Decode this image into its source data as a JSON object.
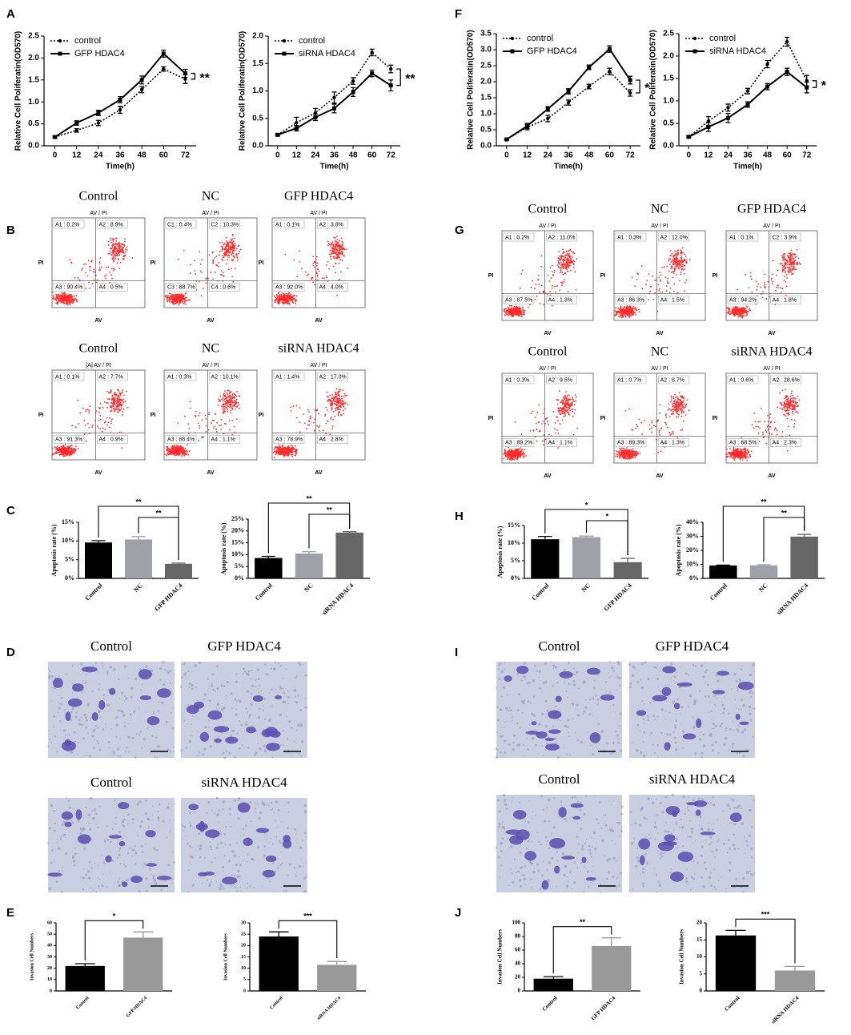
{
  "panel_labels": [
    "A",
    "B",
    "C",
    "D",
    "E",
    "F",
    "G",
    "H",
    "I",
    "J"
  ],
  "chart_data": [
    {
      "type": "line",
      "y_label": "Relative Cell Poliferatin(OD570)",
      "x_label": "Time(h)",
      "x": [
        0,
        12,
        24,
        36,
        48,
        60,
        72
      ],
      "xlim": [
        -6,
        78
      ],
      "xticks": [
        0,
        12,
        24,
        36,
        48,
        60,
        72
      ],
      "ylim": [
        0,
        2.5
      ],
      "yticks": [
        {
          "value": 0,
          "label": "0.0"
        },
        0.5,
        {
          "value": 1,
          "label": "1.0"
        },
        1.5,
        {
          "value": 2,
          "label": "2.0"
        },
        2.5
      ],
      "legend": "upper left",
      "annotation": "**",
      "series": [
        {
          "name": "control",
          "color": "#000000",
          "line_style": "dotted",
          "marker": "circle",
          "values": [
            0.2,
            0.35,
            0.52,
            0.82,
            1.28,
            1.75,
            1.52
          ],
          "errors": [
            0.02,
            0.04,
            0.06,
            0.08,
            0.07,
            0.05,
            0.1
          ]
        },
        {
          "name": "GFP HDAC4",
          "color": "#000000",
          "line_style": "solid",
          "marker": "square",
          "values": [
            0.2,
            0.52,
            0.75,
            1.05,
            1.5,
            2.1,
            1.65
          ],
          "errors": [
            0.02,
            0.05,
            0.06,
            0.07,
            0.09,
            0.08,
            0.09
          ]
        }
      ]
    },
    {
      "type": "line",
      "y_label": "Relative Cell Poliferatin(OD570)",
      "x_label": "Time(h)",
      "x": [
        0,
        12,
        24,
        36,
        48,
        60,
        72
      ],
      "xlim": [
        -6,
        78
      ],
      "xticks": [
        0,
        12,
        24,
        36,
        48,
        60,
        72
      ],
      "ylim": [
        0,
        2.0
      ],
      "yticks": [
        {
          "value": 0,
          "label": "0.0"
        },
        0.5,
        {
          "value": 1,
          "label": "1.0"
        },
        1.5,
        {
          "value": 2,
          "label": "2.0"
        }
      ],
      "legend": "upper left",
      "annotation": "**",
      "series": [
        {
          "name": "control",
          "color": "#000000",
          "line_style": "dotted",
          "marker": "circle",
          "values": [
            0.2,
            0.42,
            0.6,
            0.88,
            1.18,
            1.7,
            1.4
          ],
          "errors": [
            0.02,
            0.1,
            0.08,
            0.1,
            0.06,
            0.06,
            0.07
          ]
        },
        {
          "name": "siRNA HDAC4",
          "color": "#000000",
          "line_style": "solid",
          "marker": "square",
          "values": [
            0.2,
            0.32,
            0.52,
            0.68,
            0.98,
            1.32,
            1.1
          ],
          "errors": [
            0.02,
            0.05,
            0.06,
            0.08,
            0.08,
            0.06,
            0.1
          ]
        }
      ]
    },
    {
      "type": "line",
      "y_label": "Relative Cell Poliferatin(OD570)",
      "x_label": "Time(h)",
      "x": [
        0,
        12,
        24,
        36,
        48,
        60,
        72
      ],
      "xlim": [
        -6,
        78
      ],
      "xticks": [
        0,
        12,
        24,
        36,
        48,
        60,
        72
      ],
      "ylim": [
        0,
        3.5
      ],
      "yticks": [
        {
          "value": 0,
          "label": "0.0"
        },
        0.5,
        {
          "value": 1,
          "label": "1.0"
        },
        1.5,
        {
          "value": 2,
          "label": "2.0"
        },
        2.5,
        {
          "value": 3,
          "label": "3.0"
        },
        3.5
      ],
      "legend": "upper left",
      "annotation": "*",
      "series": [
        {
          "name": "control",
          "color": "#000000",
          "line_style": "dotted",
          "marker": "circle",
          "values": [
            0.2,
            0.58,
            0.85,
            1.35,
            1.85,
            2.32,
            1.65
          ],
          "errors": [
            0.02,
            0.08,
            0.1,
            0.08,
            0.07,
            0.1,
            0.1
          ]
        },
        {
          "name": "GFP HDAC4",
          "color": "#000000",
          "line_style": "solid",
          "marker": "square",
          "values": [
            0.2,
            0.62,
            1.15,
            1.7,
            2.45,
            3.02,
            2.05
          ],
          "errors": [
            0.02,
            0.08,
            0.07,
            0.08,
            0.07,
            0.1,
            0.12
          ]
        }
      ]
    },
    {
      "type": "line",
      "y_label": "Relative Cell Poliferatin(OD570)",
      "x_label": "Time(h)",
      "x": [
        0,
        12,
        24,
        36,
        48,
        60,
        72
      ],
      "xlim": [
        -6,
        78
      ],
      "xticks": [
        0,
        12,
        24,
        36,
        48,
        60,
        72
      ],
      "ylim": [
        0,
        2.5
      ],
      "yticks": [
        {
          "value": 0,
          "label": "0.0"
        },
        0.5,
        {
          "value": 1,
          "label": "1.0"
        },
        1.5,
        {
          "value": 2,
          "label": "2.0"
        },
        2.5
      ],
      "legend": "upper left",
      "annotation": "*",
      "series": [
        {
          "name": "control",
          "color": "#000000",
          "line_style": "dotted",
          "marker": "circle",
          "values": [
            0.2,
            0.55,
            0.85,
            1.22,
            1.82,
            2.32,
            1.45
          ],
          "errors": [
            0.02,
            0.1,
            0.08,
            0.06,
            0.08,
            0.1,
            0.12
          ]
        },
        {
          "name": "siRNA HDAC4",
          "color": "#000000",
          "line_style": "solid",
          "marker": "square",
          "values": [
            0.2,
            0.42,
            0.62,
            0.92,
            1.32,
            1.65,
            1.3
          ],
          "errors": [
            0.02,
            0.1,
            0.1,
            0.06,
            0.07,
            0.08,
            0.12
          ]
        }
      ]
    },
    {
      "type": "bar",
      "y_label": "Apoptosis rate (%)",
      "categories": [
        "Control",
        "NC",
        "GFP HDAC4"
      ],
      "values": [
        9.6,
        10.4,
        3.9
      ],
      "errors": [
        0.5,
        0.8,
        0.2
      ],
      "colors": [
        "#000000",
        "#a0a0a8",
        "#666666"
      ],
      "ylim": [
        0,
        15
      ],
      "yticks": [
        {
          "value": 0,
          "label": "0%"
        },
        {
          "value": 5,
          "label": "5%"
        },
        {
          "value": 10,
          "label": "10%"
        },
        {
          "value": 15,
          "label": "15%"
        }
      ],
      "annotations": [
        "**",
        "**"
      ]
    },
    {
      "type": "bar",
      "y_label": "Apoptosis rate (%)",
      "categories": [
        "Control",
        "NC",
        "siRNA HDAC4"
      ],
      "values": [
        8.6,
        10.5,
        19.3
      ],
      "errors": [
        0.7,
        0.8,
        0.4
      ],
      "colors": [
        "#000000",
        "#a0a0a8",
        "#666666"
      ],
      "ylim": [
        0,
        25
      ],
      "yticks": [
        {
          "value": 0,
          "label": "0%"
        },
        {
          "value": 5,
          "label": "5%"
        },
        {
          "value": 10,
          "label": "10%"
        },
        {
          "value": 15,
          "label": "15%"
        },
        {
          "value": 20,
          "label": "20%"
        },
        {
          "value": 25,
          "label": "25%"
        }
      ],
      "annotations": [
        "**",
        "**"
      ]
    },
    {
      "type": "bar",
      "y_label": "Apoptosis rate (%)",
      "categories": [
        "Control",
        "NC",
        "GFP HDAC4"
      ],
      "values": [
        11.1,
        11.7,
        4.6
      ],
      "errors": [
        0.8,
        0.3,
        1.1
      ],
      "colors": [
        "#000000",
        "#a0a0a8",
        "#666666"
      ],
      "ylim": [
        0,
        15
      ],
      "yticks": [
        {
          "value": 0,
          "label": "0%"
        },
        {
          "value": 5,
          "label": "5%"
        },
        {
          "value": 10,
          "label": "10%"
        },
        {
          "value": 15,
          "label": "15%"
        }
      ],
      "annotations": [
        "*",
        "*"
      ]
    },
    {
      "type": "bar",
      "y_label": "Apoptosis rate (%)",
      "categories": [
        "Control",
        "NC",
        "siRNA HDAC4"
      ],
      "values": [
        9.2,
        9.3,
        29.8
      ],
      "errors": [
        0.3,
        0.5,
        1.6
      ],
      "colors": [
        "#000000",
        "#a0a0a8",
        "#666666"
      ],
      "ylim": [
        0,
        40
      ],
      "yticks": [
        {
          "value": 0,
          "label": "0%"
        },
        {
          "value": 10,
          "label": "10%"
        },
        {
          "value": 20,
          "label": "20%"
        },
        {
          "value": 30,
          "label": "30%"
        },
        {
          "value": 40,
          "label": "40%"
        }
      ],
      "annotations": [
        "**",
        "**"
      ]
    },
    {
      "type": "bar",
      "y_label": "Invasion Cell Numbers",
      "categories": [
        "Control",
        "GFP HDAC4"
      ],
      "values": [
        22,
        47
      ],
      "errors": [
        2,
        5
      ],
      "colors": [
        "#000000",
        "#999999"
      ],
      "ylim": [
        0,
        60
      ],
      "yticks": [
        0,
        10,
        20,
        30,
        40,
        50,
        60
      ],
      "annotations": [
        "*"
      ]
    },
    {
      "type": "bar",
      "y_label": "Invasion Cell Numbers",
      "categories": [
        "Control",
        "siRNA HDAC4"
      ],
      "values": [
        24,
        11.5
      ],
      "errors": [
        2,
        1.5
      ],
      "colors": [
        "#000000",
        "#999999"
      ],
      "ylim": [
        0,
        30
      ],
      "yticks": [
        0,
        5,
        10,
        15,
        20,
        25,
        30
      ],
      "annotations": [
        "***"
      ]
    },
    {
      "type": "bar",
      "y_label": "Invasion Cell Numbers",
      "categories": [
        "Control",
        "GFP HDAC4"
      ],
      "values": [
        18,
        66
      ],
      "errors": [
        3,
        12
      ],
      "colors": [
        "#000000",
        "#999999"
      ],
      "ylim": [
        0,
        100
      ],
      "yticks": [
        0,
        20,
        40,
        60,
        80,
        100
      ],
      "annotations": [
        "**"
      ]
    },
    {
      "type": "bar",
      "y_label": "Invasion Cell Numbers",
      "categories": [
        "Control",
        "siRNA HDAC4"
      ],
      "values": [
        16.3,
        6
      ],
      "errors": [
        1.5,
        1.2
      ],
      "colors": [
        "#000000",
        "#999999"
      ],
      "ylim": [
        0,
        20
      ],
      "yticks": [
        0,
        5,
        10,
        15,
        20
      ],
      "annotations": [
        "***"
      ]
    }
  ],
  "flow": {
    "y_axis": "PI",
    "x_axis": "AV",
    "B": [
      {
        "title": "Control",
        "header": "AV / PI",
        "quadrants": [
          "A1 : 0.2%",
          "A2 : 8.9%",
          "A3 : 90.4%",
          "A4 : 0.5%"
        ]
      },
      {
        "title": "NC",
        "header": "AV / PI",
        "quadrants": [
          "C1 : 0.4%",
          "C2 : 10.3%",
          "C3 : 88.7%",
          "C4 : 0.6%"
        ]
      },
      {
        "title": "GFP HDAC4",
        "header": "AV / PI",
        "quadrants": [
          "A1 : 0.1%",
          "A2 : 3.8%",
          "A3 : 92.0%",
          "A4 : 4.0%"
        ]
      },
      {
        "title": "Control",
        "header": "[A] AV / PI",
        "quadrants": [
          "A1 : 0.1%",
          "A2 : 7.7%",
          "A3 : 91.3%",
          "A4 : 0.9%"
        ]
      },
      {
        "title": "NC",
        "header": "AV / PI",
        "quadrants": [
          "A1 : 0.3%",
          "A2 : 10.1%",
          "A3 : 88.4%",
          "A4 : 1.1%"
        ]
      },
      {
        "title": "siRNA HDAC4",
        "header": "AV / PI",
        "quadrants": [
          "A1 : 1.4%",
          "A2 : 17.0%",
          "A3 : 78.9%",
          "A4 : 2.8%"
        ]
      }
    ],
    "G": [
      {
        "title": "Control",
        "header": "AV / PI",
        "quadrants": [
          "A1 : 0.2%",
          "A2 : 11.0%",
          "A3 : 87.5%",
          "A4 : 1.3%"
        ]
      },
      {
        "title": "NC",
        "header": "AV / PI",
        "quadrants": [
          "A1 : 0.3%",
          "A2 : 12.0%",
          "A3 : 86.3%",
          "A4 : 1.5%"
        ]
      },
      {
        "title": "GFP HDAC4",
        "header": "AV / PI",
        "quadrants": [
          "A1 : 0.1%",
          "C2 : 3.9%",
          "A3 : 94.2%",
          "A4 : 1.8%"
        ]
      },
      {
        "title": "Control",
        "header": "AV / PI",
        "quadrants": [
          "A1 : 0.3%",
          "A2 : 9.5%",
          "A3 : 89.2%",
          "A4 : 1.1%"
        ]
      },
      {
        "title": "NC",
        "header": "AV / PI",
        "quadrants": [
          "A1 : 0.7%",
          "A2 : 8.7%",
          "A3 : 89.3%",
          "A4 : 1.3%"
        ]
      },
      {
        "title": "siRNA HDAC4",
        "header": "AV / PI",
        "quadrants": [
          "A1 : 0.6%",
          "A2 : 28.6%",
          "A3 : 68.5%",
          "A4 : 2.3%"
        ]
      }
    ]
  },
  "micrographs": {
    "D": [
      "Control",
      "GFP HDAC4",
      "Control",
      "siRNA HDAC4"
    ],
    "I": [
      "Control",
      "GFP HDAC4",
      "Control",
      "siRNA HDAC4"
    ]
  }
}
